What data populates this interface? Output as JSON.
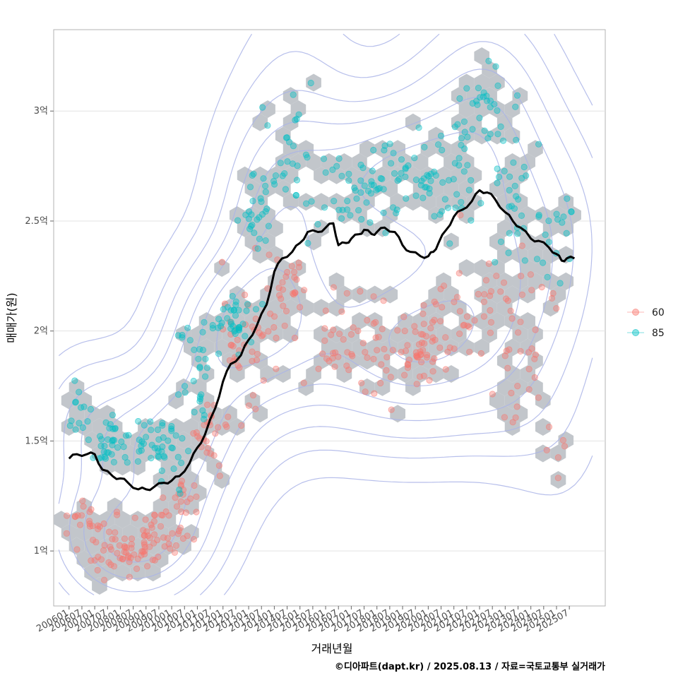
{
  "chart_data": {
    "type": "scatter",
    "title": "",
    "xlabel": "거래년월",
    "ylabel": "매매가(원)",
    "caption": "©디아파트(dapt.kr) / 2025.08.13 / 자료=국토교통부 실거래가",
    "x_ticks": [
      "200601",
      "200607",
      "200701",
      "200707",
      "200801",
      "200807",
      "200901",
      "200907",
      "201001",
      "201007",
      "201101",
      "201107",
      "201201",
      "201207",
      "201301",
      "201307",
      "201401",
      "201407",
      "201501",
      "201507",
      "201601",
      "201607",
      "201701",
      "201707",
      "201801",
      "201807",
      "201901",
      "201907",
      "202001",
      "202007",
      "202101",
      "202107",
      "202201",
      "202207",
      "202301",
      "202307",
      "202401",
      "202407",
      "202501",
      "202507"
    ],
    "y_ticks": [
      {
        "value": 1.0,
        "label": "1억"
      },
      {
        "value": 1.5,
        "label": "1.5억"
      },
      {
        "value": 2.0,
        "label": "2억"
      },
      {
        "value": 2.5,
        "label": "2.5억"
      },
      {
        "value": 3.0,
        "label": "3억"
      }
    ],
    "xlim": [
      2005.4,
      2026.9
    ],
    "ylim": [
      0.75,
      3.37
    ],
    "y_unit": "억",
    "grid": true,
    "legend_position": "right",
    "colors": {
      "s60": "#F8766D",
      "s85": "#00BFC4",
      "trend": "#000000",
      "hex": "#c2c6cb",
      "contour": "#aab4e8"
    },
    "series": [
      {
        "name": "60",
        "clusters": [
          {
            "x": 2006.6,
            "y": 1.12,
            "sx": 0.35,
            "sy": 0.05,
            "n": 22
          },
          {
            "x": 2007.8,
            "y": 1.0,
            "sx": 0.5,
            "sy": 0.06,
            "n": 40
          },
          {
            "x": 2009.3,
            "y": 1.04,
            "sx": 0.5,
            "sy": 0.06,
            "n": 45
          },
          {
            "x": 2010.5,
            "y": 1.2,
            "sx": 0.4,
            "sy": 0.08,
            "n": 22
          },
          {
            "x": 2011.6,
            "y": 1.55,
            "sx": 0.5,
            "sy": 0.1,
            "n": 28
          },
          {
            "x": 2013.0,
            "y": 1.95,
            "sx": 0.6,
            "sy": 0.12,
            "n": 40
          },
          {
            "x": 2014.6,
            "y": 2.15,
            "sx": 0.5,
            "sy": 0.12,
            "n": 28
          },
          {
            "x": 2016.5,
            "y": 1.95,
            "sx": 0.9,
            "sy": 0.12,
            "n": 35
          },
          {
            "x": 2018.5,
            "y": 1.95,
            "sx": 0.8,
            "sy": 0.1,
            "n": 30
          },
          {
            "x": 2020.0,
            "y": 1.9,
            "sx": 0.8,
            "sy": 0.1,
            "n": 45
          },
          {
            "x": 2022.0,
            "y": 2.1,
            "sx": 0.8,
            "sy": 0.12,
            "n": 35
          },
          {
            "x": 2023.6,
            "y": 2.0,
            "sx": 0.8,
            "sy": 0.15,
            "n": 25
          },
          {
            "x": 2023.2,
            "y": 1.65,
            "sx": 0.3,
            "sy": 0.05,
            "n": 6
          },
          {
            "x": 2025.2,
            "y": 1.45,
            "sx": 0.4,
            "sy": 0.1,
            "n": 6
          }
        ]
      },
      {
        "name": "85",
        "clusters": [
          {
            "x": 2006.4,
            "y": 1.63,
            "sx": 0.3,
            "sy": 0.07,
            "n": 12
          },
          {
            "x": 2007.6,
            "y": 1.5,
            "sx": 0.5,
            "sy": 0.07,
            "n": 35
          },
          {
            "x": 2009.6,
            "y": 1.5,
            "sx": 0.5,
            "sy": 0.08,
            "n": 45
          },
          {
            "x": 2010.9,
            "y": 1.75,
            "sx": 0.35,
            "sy": 0.12,
            "n": 25
          },
          {
            "x": 2012.4,
            "y": 2.05,
            "sx": 0.5,
            "sy": 0.07,
            "n": 40
          },
          {
            "x": 2013.5,
            "y": 2.55,
            "sx": 0.4,
            "sy": 0.12,
            "n": 30
          },
          {
            "x": 2014.8,
            "y": 2.8,
            "sx": 0.5,
            "sy": 0.2,
            "n": 25
          },
          {
            "x": 2016.8,
            "y": 2.65,
            "sx": 0.8,
            "sy": 0.1,
            "n": 30
          },
          {
            "x": 2018.9,
            "y": 2.7,
            "sx": 0.8,
            "sy": 0.08,
            "n": 45
          },
          {
            "x": 2020.8,
            "y": 2.7,
            "sx": 0.7,
            "sy": 0.15,
            "n": 40
          },
          {
            "x": 2022.3,
            "y": 3.05,
            "sx": 0.5,
            "sy": 0.12,
            "n": 30
          },
          {
            "x": 2023.6,
            "y": 2.6,
            "sx": 0.6,
            "sy": 0.15,
            "n": 30
          },
          {
            "x": 2025.3,
            "y": 2.45,
            "sx": 0.5,
            "sy": 0.12,
            "n": 20
          }
        ]
      }
    ],
    "trend_line": {
      "name": "",
      "points": [
        [
          2006.0,
          1.42
        ],
        [
          2006.3,
          1.44
        ],
        [
          2006.7,
          1.44
        ],
        [
          2007.0,
          1.44
        ],
        [
          2007.3,
          1.37
        ],
        [
          2007.7,
          1.34
        ],
        [
          2008.0,
          1.33
        ],
        [
          2008.3,
          1.31
        ],
        [
          2008.7,
          1.28
        ],
        [
          2009.0,
          1.28
        ],
        [
          2009.3,
          1.29
        ],
        [
          2009.7,
          1.31
        ],
        [
          2010.0,
          1.32
        ],
        [
          2010.3,
          1.34
        ],
        [
          2010.7,
          1.4
        ],
        [
          2011.0,
          1.47
        ],
        [
          2011.3,
          1.53
        ],
        [
          2011.7,
          1.65
        ],
        [
          2012.0,
          1.77
        ],
        [
          2012.3,
          1.85
        ],
        [
          2012.7,
          1.89
        ],
        [
          2013.0,
          1.96
        ],
        [
          2013.3,
          2.02
        ],
        [
          2013.7,
          2.12
        ],
        [
          2014.0,
          2.27
        ],
        [
          2014.3,
          2.33
        ],
        [
          2014.7,
          2.36
        ],
        [
          2015.0,
          2.4
        ],
        [
          2015.3,
          2.45
        ],
        [
          2015.7,
          2.45
        ],
        [
          2016.0,
          2.47
        ],
        [
          2016.3,
          2.49
        ],
        [
          2016.5,
          2.39
        ],
        [
          2016.8,
          2.4
        ],
        [
          2017.0,
          2.42
        ],
        [
          2017.3,
          2.44
        ],
        [
          2017.5,
          2.46
        ],
        [
          2017.8,
          2.44
        ],
        [
          2018.0,
          2.45
        ],
        [
          2018.3,
          2.47
        ],
        [
          2018.7,
          2.45
        ],
        [
          2019.0,
          2.39
        ],
        [
          2019.3,
          2.36
        ],
        [
          2019.7,
          2.34
        ],
        [
          2020.0,
          2.34
        ],
        [
          2020.2,
          2.36
        ],
        [
          2020.4,
          2.4
        ],
        [
          2020.7,
          2.46
        ],
        [
          2021.0,
          2.52
        ],
        [
          2021.3,
          2.55
        ],
        [
          2021.7,
          2.59
        ],
        [
          2022.0,
          2.64
        ],
        [
          2022.3,
          2.63
        ],
        [
          2022.6,
          2.6
        ],
        [
          2023.0,
          2.54
        ],
        [
          2023.3,
          2.5
        ],
        [
          2023.6,
          2.47
        ],
        [
          2024.0,
          2.42
        ],
        [
          2024.3,
          2.41
        ],
        [
          2024.7,
          2.38
        ],
        [
          2025.0,
          2.35
        ],
        [
          2025.2,
          2.32
        ],
        [
          2025.4,
          2.33
        ],
        [
          2025.7,
          2.33
        ]
      ]
    }
  }
}
